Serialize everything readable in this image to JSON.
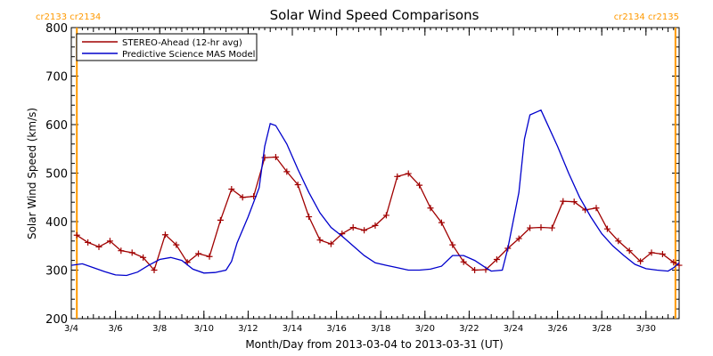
{
  "chart_data": {
    "type": "line",
    "title": "Solar Wind Speed Comparisons",
    "xlabel": "Month/Day from 2013-03-04 to 2013-03-31 (UT)",
    "ylabel": "Solar Wind Speed (km/s)",
    "xlim": [
      "2013-03-04",
      "2013-03-31T12:00"
    ],
    "ylim": [
      200,
      800
    ],
    "x_ticks": [
      "3/4",
      "3/6",
      "3/8",
      "3/10",
      "3/12",
      "3/14",
      "3/16",
      "3/18",
      "3/20",
      "3/22",
      "3/24",
      "3/26",
      "3/28",
      "3/30"
    ],
    "y_ticks": [
      200,
      300,
      400,
      500,
      600,
      700,
      800
    ],
    "legend_position": "top-left",
    "carrington_markers": [
      {
        "date": "2013-03-04T06:00",
        "label": "cr2133 cr2134",
        "side": "left"
      },
      {
        "date": "2013-03-31T08:00",
        "label": "cr2134 cr2135",
        "side": "right"
      }
    ],
    "colors": {
      "stereo": "#a00000",
      "mas": "#0000cc",
      "marker": "#ff9900",
      "axis": "#000000"
    },
    "series": [
      {
        "name": "STEREO-Ahead (12-hr avg)",
        "color": "#a00000",
        "marker": "plus",
        "points": [
          [
            "2013-03-04T06:00",
            372
          ],
          [
            "2013-03-04T18:00",
            357
          ],
          [
            "2013-03-05T06:00",
            348
          ],
          [
            "2013-03-05T18:00",
            360
          ],
          [
            "2013-03-06T06:00",
            340
          ],
          [
            "2013-03-06T18:00",
            336
          ],
          [
            "2013-03-07T06:00",
            326
          ],
          [
            "2013-03-07T18:00",
            300
          ],
          [
            "2013-03-08T06:00",
            373
          ],
          [
            "2013-03-08T18:00",
            352
          ],
          [
            "2013-03-09T06:00",
            316
          ],
          [
            "2013-03-09T18:00",
            334
          ],
          [
            "2013-03-10T06:00",
            328
          ],
          [
            "2013-03-10T18:00",
            403
          ],
          [
            "2013-03-11T06:00",
            467
          ],
          [
            "2013-03-11T18:00",
            450
          ],
          [
            "2013-03-12T06:00",
            452
          ],
          [
            "2013-03-12T18:00",
            532
          ],
          [
            "2013-03-13T06:00",
            533
          ],
          [
            "2013-03-13T18:00",
            503
          ],
          [
            "2013-03-14T06:00",
            476
          ],
          [
            "2013-03-14T18:00",
            410
          ],
          [
            "2013-03-15T06:00",
            362
          ],
          [
            "2013-03-15T18:00",
            354
          ],
          [
            "2013-03-16T06:00",
            375
          ],
          [
            "2013-03-16T18:00",
            388
          ],
          [
            "2013-03-17T06:00",
            382
          ],
          [
            "2013-03-17T18:00",
            392
          ],
          [
            "2013-03-18T06:00",
            413
          ],
          [
            "2013-03-18T18:00",
            493
          ],
          [
            "2013-03-19T06:00",
            499
          ],
          [
            "2013-03-19T18:00",
            475
          ],
          [
            "2013-03-20T06:00",
            428
          ],
          [
            "2013-03-20T18:00",
            398
          ],
          [
            "2013-03-21T06:00",
            352
          ],
          [
            "2013-03-21T18:00",
            317
          ],
          [
            "2013-03-22T06:00",
            300
          ],
          [
            "2013-03-22T18:00",
            301
          ],
          [
            "2013-03-23T06:00",
            322
          ],
          [
            "2013-03-23T18:00",
            345
          ],
          [
            "2013-03-24T06:00",
            365
          ],
          [
            "2013-03-24T18:00",
            387
          ],
          [
            "2013-03-25T06:00",
            388
          ],
          [
            "2013-03-25T18:00",
            387
          ],
          [
            "2013-03-26T06:00",
            442
          ],
          [
            "2013-03-26T18:00",
            441
          ],
          [
            "2013-03-27T06:00",
            424
          ],
          [
            "2013-03-27T18:00",
            428
          ],
          [
            "2013-03-28T06:00",
            385
          ],
          [
            "2013-03-28T18:00",
            360
          ],
          [
            "2013-03-29T06:00",
            340
          ],
          [
            "2013-03-29T18:00",
            318
          ],
          [
            "2013-03-30T06:00",
            336
          ],
          [
            "2013-03-30T18:00",
            333
          ],
          [
            "2013-03-31T06:00",
            316
          ],
          [
            "2013-03-31T12:00",
            310
          ]
        ]
      },
      {
        "name": "Predictive Science MAS Model",
        "color": "#0000cc",
        "marker": "none",
        "points": [
          [
            "2013-03-04T00:00",
            310
          ],
          [
            "2013-03-04T12:00",
            313
          ],
          [
            "2013-03-05T00:00",
            305
          ],
          [
            "2013-03-05T12:00",
            297
          ],
          [
            "2013-03-06T00:00",
            290
          ],
          [
            "2013-03-06T12:00",
            289
          ],
          [
            "2013-03-07T00:00",
            296
          ],
          [
            "2013-03-07T12:00",
            310
          ],
          [
            "2013-03-08T00:00",
            322
          ],
          [
            "2013-03-08T12:00",
            326
          ],
          [
            "2013-03-09T00:00",
            320
          ],
          [
            "2013-03-09T12:00",
            302
          ],
          [
            "2013-03-10T00:00",
            294
          ],
          [
            "2013-03-10T12:00",
            295
          ],
          [
            "2013-03-11T00:00",
            300
          ],
          [
            "2013-03-11T06:00",
            318
          ],
          [
            "2013-03-11T12:00",
            356
          ],
          [
            "2013-03-12T00:00",
            410
          ],
          [
            "2013-03-12T12:00",
            470
          ],
          [
            "2013-03-12T18:00",
            555
          ],
          [
            "2013-03-13T00:00",
            602
          ],
          [
            "2013-03-13T06:00",
            598
          ],
          [
            "2013-03-13T18:00",
            560
          ],
          [
            "2013-03-14T06:00",
            508
          ],
          [
            "2013-03-14T18:00",
            460
          ],
          [
            "2013-03-15T06:00",
            418
          ],
          [
            "2013-03-15T18:00",
            388
          ],
          [
            "2013-03-16T06:00",
            370
          ],
          [
            "2013-03-16T18:00",
            350
          ],
          [
            "2013-03-17T06:00",
            330
          ],
          [
            "2013-03-17T18:00",
            315
          ],
          [
            "2013-03-18T06:00",
            310
          ],
          [
            "2013-03-18T18:00",
            305
          ],
          [
            "2013-03-19T06:00",
            300
          ],
          [
            "2013-03-19T18:00",
            300
          ],
          [
            "2013-03-20T06:00",
            302
          ],
          [
            "2013-03-20T18:00",
            308
          ],
          [
            "2013-03-21T06:00",
            330
          ],
          [
            "2013-03-21T18:00",
            330
          ],
          [
            "2013-03-22T06:00",
            320
          ],
          [
            "2013-03-22T18:00",
            305
          ],
          [
            "2013-03-23T00:00",
            298
          ],
          [
            "2013-03-23T12:00",
            300
          ],
          [
            "2013-03-23T18:00",
            345
          ],
          [
            "2013-03-24T06:00",
            460
          ],
          [
            "2013-03-24T12:00",
            570
          ],
          [
            "2013-03-24T18:00",
            620
          ],
          [
            "2013-03-25T06:00",
            630
          ],
          [
            "2013-03-25T12:00",
            605
          ],
          [
            "2013-03-26T00:00",
            555
          ],
          [
            "2013-03-26T12:00",
            500
          ],
          [
            "2013-03-27T00:00",
            450
          ],
          [
            "2013-03-27T12:00",
            410
          ],
          [
            "2013-03-28T00:00",
            375
          ],
          [
            "2013-03-28T12:00",
            350
          ],
          [
            "2013-03-29T00:00",
            330
          ],
          [
            "2013-03-29T12:00",
            312
          ],
          [
            "2013-03-30T00:00",
            303
          ],
          [
            "2013-03-30T12:00",
            300
          ],
          [
            "2013-03-31T00:00",
            298
          ],
          [
            "2013-03-31T06:00",
            305
          ],
          [
            "2013-03-31T12:00",
            315
          ]
        ]
      }
    ]
  }
}
